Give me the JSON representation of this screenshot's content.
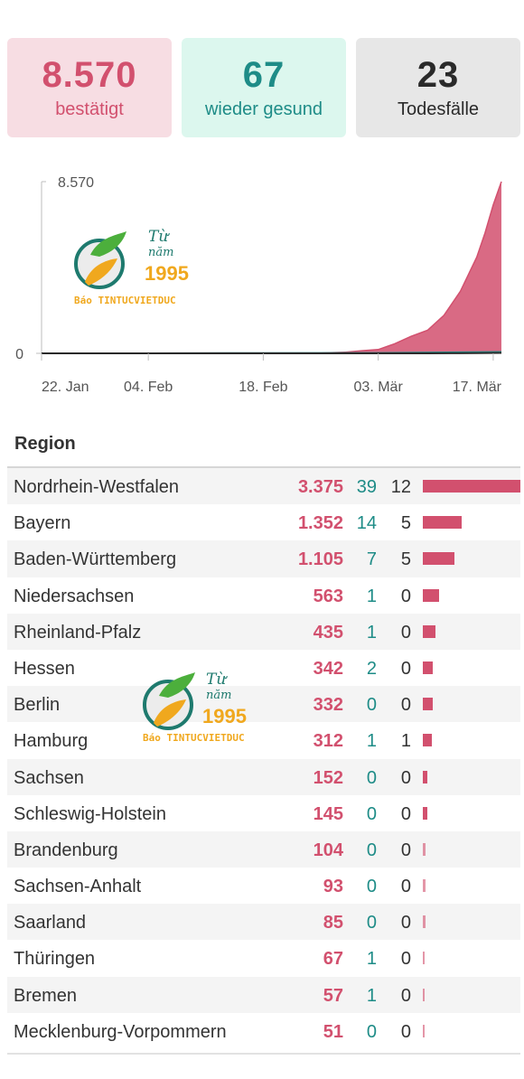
{
  "stats": {
    "confirmed": {
      "value": "8.570",
      "label": "bestätigt"
    },
    "recovered": {
      "value": "67",
      "label": "wieder gesund"
    },
    "deaths": {
      "value": "23",
      "label": "Todesfälle"
    }
  },
  "chart_data": {
    "type": "area",
    "x_ticks": [
      "22. Jan",
      "04. Feb",
      "18. Feb",
      "03. Mär",
      "17. Mär"
    ],
    "y_ticks": [
      "0",
      "8.570"
    ],
    "ylim": [
      0,
      8570
    ],
    "series": [
      {
        "color": "#d2506e",
        "x": [
          "22. Jan",
          "27. Jan",
          "04. Feb",
          "18. Feb",
          "25. Feb",
          "28. Feb",
          "01. Mär",
          "03. Mär",
          "05. Mär",
          "07. Mär",
          "09. Mär",
          "11. Mär",
          "13. Mär",
          "15. Mär",
          "16. Mär",
          "17. Mär",
          "18. Mär"
        ],
        "values": [
          0,
          4,
          12,
          16,
          18,
          60,
          130,
          190,
          480,
          850,
          1150,
          1900,
          3100,
          4800,
          6000,
          7400,
          8570
        ]
      },
      {
        "color": "#1e8c87",
        "x": [
          "22. Jan",
          "04. Feb",
          "18. Feb",
          "03. Mär",
          "18. Mär"
        ],
        "values": [
          0,
          0,
          12,
          16,
          67
        ]
      },
      {
        "color": "#2a2a2a",
        "x": [
          "22. Jan",
          "09. Mär",
          "12. Mär",
          "15. Mär",
          "18. Mär"
        ],
        "values": [
          0,
          2,
          5,
          12,
          23
        ]
      }
    ]
  },
  "watermark": {
    "line1": "Từ",
    "line2": "năm",
    "year": "1995",
    "brand": "Báo TINTUCVIETDUC"
  },
  "region": {
    "header": "Region",
    "rows": [
      {
        "name": "Nordrhein-Westfalen",
        "cases": "3.375",
        "recovered": "39",
        "deaths": "12",
        "value": 3375
      },
      {
        "name": "Bayern",
        "cases": "1.352",
        "recovered": "14",
        "deaths": "5",
        "value": 1352
      },
      {
        "name": "Baden-Württemberg",
        "cases": "1.105",
        "recovered": "7",
        "deaths": "5",
        "value": 1105
      },
      {
        "name": "Niedersachsen",
        "cases": "563",
        "recovered": "1",
        "deaths": "0",
        "value": 563
      },
      {
        "name": "Rheinland-Pfalz",
        "cases": "435",
        "recovered": "1",
        "deaths": "0",
        "value": 435
      },
      {
        "name": "Hessen",
        "cases": "342",
        "recovered": "2",
        "deaths": "0",
        "value": 342
      },
      {
        "name": "Berlin",
        "cases": "332",
        "recovered": "0",
        "deaths": "0",
        "value": 332
      },
      {
        "name": "Hamburg",
        "cases": "312",
        "recovered": "1",
        "deaths": "1",
        "value": 312
      },
      {
        "name": "Sachsen",
        "cases": "152",
        "recovered": "0",
        "deaths": "0",
        "value": 152
      },
      {
        "name": "Schleswig-Holstein",
        "cases": "145",
        "recovered": "0",
        "deaths": "0",
        "value": 145
      },
      {
        "name": "Brandenburg",
        "cases": "104",
        "recovered": "0",
        "deaths": "0",
        "value": 104
      },
      {
        "name": "Sachsen-Anhalt",
        "cases": "93",
        "recovered": "0",
        "deaths": "0",
        "value": 93
      },
      {
        "name": "Saarland",
        "cases": "85",
        "recovered": "0",
        "deaths": "0",
        "value": 85
      },
      {
        "name": "Thüringen",
        "cases": "67",
        "recovered": "1",
        "deaths": "0",
        "value": 67
      },
      {
        "name": "Bremen",
        "cases": "57",
        "recovered": "1",
        "deaths": "0",
        "value": 57
      },
      {
        "name": "Mecklenburg-Vorpommern",
        "cases": "51",
        "recovered": "0",
        "deaths": "0",
        "value": 51
      }
    ]
  }
}
